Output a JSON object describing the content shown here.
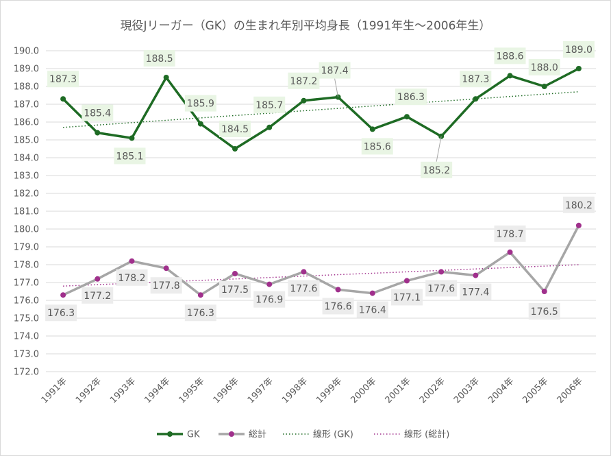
{
  "chart_data": {
    "type": "line",
    "title": "現役Jリーガー（GK）の生まれ年別平均身長（1991年生～2006年生）",
    "categories": [
      "1991年",
      "1992年",
      "1993年",
      "1994年",
      "1995年",
      "1996年",
      "1997年",
      "1998年",
      "1999年",
      "2000年",
      "2001年",
      "2002年",
      "2003年",
      "2004年",
      "2005年",
      "2006年"
    ],
    "ylim": [
      172.0,
      190.0
    ],
    "ystep": 1.0,
    "yticks": [
      "190.0",
      "189.0",
      "188.0",
      "187.0",
      "186.0",
      "185.0",
      "184.0",
      "183.0",
      "182.0",
      "181.0",
      "180.0",
      "179.0",
      "178.0",
      "177.0",
      "176.0",
      "175.0",
      "174.0",
      "173.0",
      "172.0"
    ],
    "grid": true,
    "series": [
      {
        "name": "GK",
        "color": "#1e6b24",
        "marker_color": "#1e6b24",
        "label_bg": "#e9f5e4",
        "label_color": "#595959",
        "values": [
          187.3,
          185.4,
          185.1,
          188.5,
          185.9,
          184.5,
          185.7,
          187.2,
          187.4,
          185.6,
          186.3,
          185.2,
          187.3,
          188.6,
          188.0,
          189.0
        ],
        "labels": [
          "187.3",
          "185.4",
          "185.1",
          "188.5",
          "185.9",
          "184.5",
          "185.7",
          "187.2",
          "187.4",
          "185.6",
          "186.3",
          "185.2",
          "187.3",
          "188.6",
          "188.0",
          "189.0"
        ]
      },
      {
        "name": "総計",
        "color": "#a6a6a6",
        "marker_color": "#a0308c",
        "label_bg": "#ececec",
        "label_color": "#595959",
        "values": [
          176.3,
          177.2,
          178.2,
          177.8,
          176.3,
          177.5,
          176.9,
          177.6,
          176.6,
          176.4,
          177.1,
          177.6,
          177.4,
          178.7,
          176.5,
          180.2
        ],
        "labels": [
          "176.3",
          "177.2",
          "178.2",
          "177.8",
          "176.3",
          "177.5",
          "176.9",
          "177.6",
          "176.6",
          "176.4",
          "177.1",
          "177.6",
          "177.4",
          "178.7",
          "176.5",
          "180.2"
        ]
      }
    ],
    "trendlines": [
      {
        "name": "線形 (GK)",
        "color": "#1e6b24",
        "start": 185.7,
        "end": 187.7
      },
      {
        "name": "線形 (総計)",
        "color": "#a0308c",
        "start": 176.8,
        "end": 178.0
      }
    ],
    "legend": {
      "position": "bottom",
      "items": [
        "GK",
        "総計",
        "線形 (GK)",
        "線形 (総計)"
      ]
    }
  }
}
